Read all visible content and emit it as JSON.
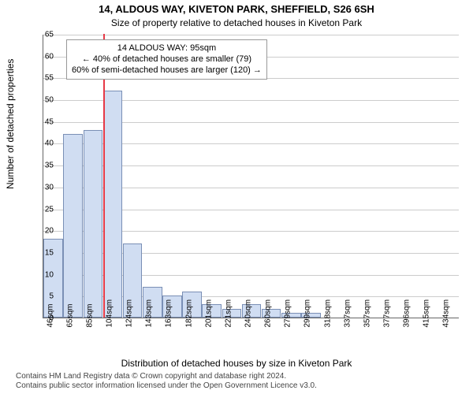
{
  "title": "14, ALDOUS WAY, KIVETON PARK, SHEFFIELD, S26 6SH",
  "subtitle": "Size of property relative to detached houses in Kiveton Park",
  "y_axis_label": "Number of detached properties",
  "x_axis_label": "Distribution of detached houses by size in Kiveton Park",
  "footnote_line1": "Contains HM Land Registry data © Crown copyright and database right 2024.",
  "footnote_line2": "Contains public sector information licensed under the Open Government Licence v3.0.",
  "annotation": {
    "line1": "14 ALDOUS WAY: 95sqm",
    "line2": "← 40% of detached houses are smaller (79)",
    "line3": "60% of semi-detached houses are larger (120) →",
    "fontsize": 11
  },
  "chart": {
    "type": "bar-histogram",
    "ylim": [
      0,
      65
    ],
    "ytick_step": 5,
    "bar_fill": "#d0ddf2",
    "bar_border": "#7a8fb5",
    "grid_color": "#cccccc",
    "background_color": "#ffffff",
    "marker_color": "#e63946",
    "marker_x_sqm": 95,
    "title_fontsize": 13,
    "subtitle_fontsize": 12,
    "axis_label_fontsize": 12,
    "tick_fontsize": 10,
    "x_categories": [
      "46sqm",
      "65sqm",
      "85sqm",
      "104sqm",
      "124sqm",
      "143sqm",
      "163sqm",
      "182sqm",
      "201sqm",
      "221sqm",
      "240sqm",
      "260sqm",
      "279sqm",
      "299sqm",
      "318sqm",
      "337sqm",
      "357sqm",
      "377sqm",
      "396sqm",
      "415sqm",
      "434sqm"
    ],
    "values": [
      18,
      42,
      43,
      52,
      17,
      7,
      5,
      6,
      3,
      2,
      3,
      2,
      1,
      1,
      0,
      0,
      0,
      0,
      0,
      0,
      0
    ]
  }
}
